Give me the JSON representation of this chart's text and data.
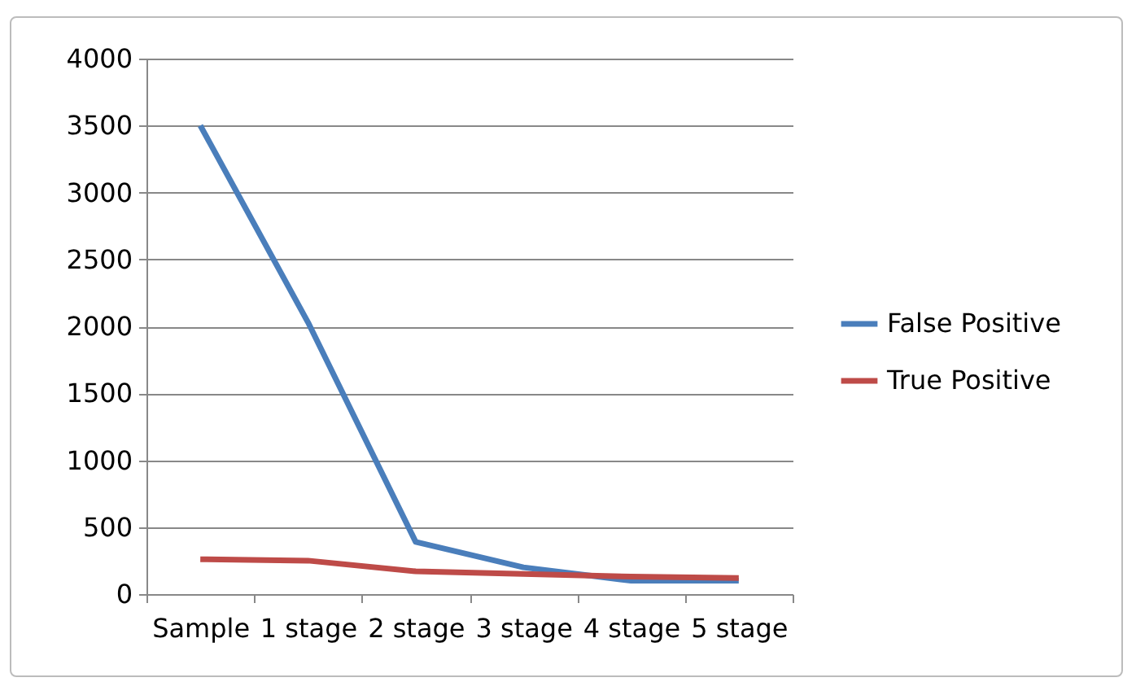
{
  "chart_data": {
    "type": "line",
    "categories": [
      "Sample",
      "1 stage",
      "2 stage",
      "3 stage",
      "4 stage",
      "5 stage"
    ],
    "series": [
      {
        "name": "False Positive",
        "color": "#4a7ebb",
        "values": [
          3500,
          2030,
          390,
          200,
          100,
          100
        ]
      },
      {
        "name": "True Positive",
        "color": "#be4b48",
        "values": [
          260,
          250,
          170,
          150,
          130,
          120
        ]
      }
    ],
    "ylim": [
      0,
      4000
    ],
    "yticks": [
      0,
      500,
      1000,
      1500,
      2000,
      2500,
      3000,
      3500,
      4000
    ],
    "grid": "y",
    "legend": "right",
    "line_style": "solid"
  }
}
